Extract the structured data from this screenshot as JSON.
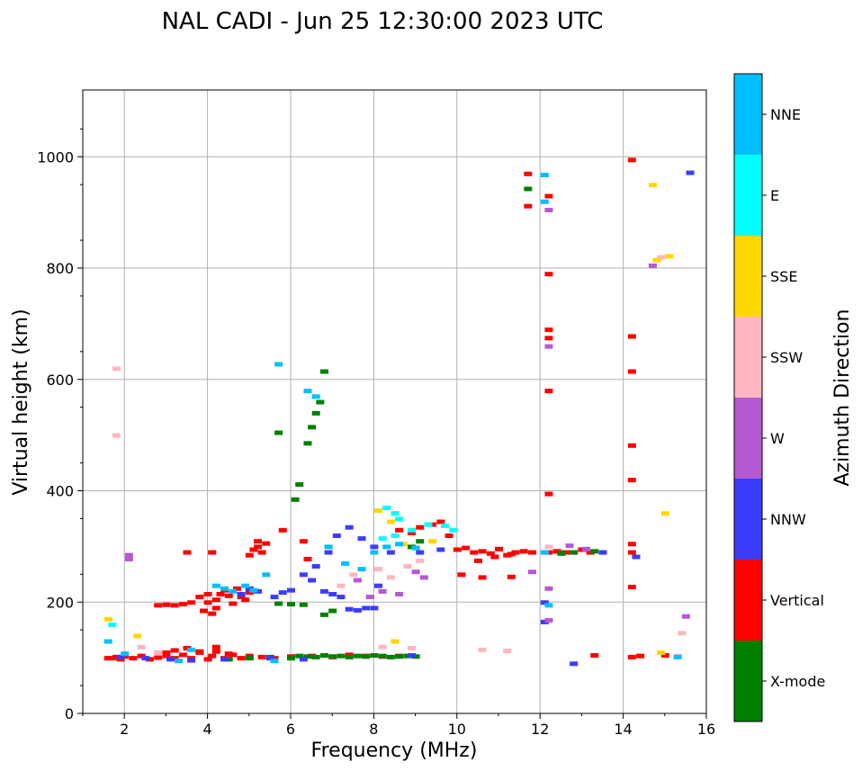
{
  "chart_data": {
    "type": "scatter",
    "title": "NAL CADI - Jun 25 12:30:00 2023 UTC",
    "xlabel": "Frequency (MHz)",
    "ylabel": "Virtual height (km)",
    "xlim": [
      1.0,
      16.0
    ],
    "ylim": [
      0,
      1120
    ],
    "xticks": [
      2,
      4,
      6,
      8,
      10,
      12,
      14,
      16
    ],
    "yticks": [
      0,
      200,
      400,
      600,
      800,
      1000
    ],
    "grid": true,
    "colorbar": {
      "label": "Azimuth Direction",
      "categories": [
        {
          "name": "X-mode",
          "color": "#008000"
        },
        {
          "name": "Vertical",
          "color": "#ff0000"
        },
        {
          "name": "NNW",
          "color": "#3c3cff"
        },
        {
          "name": "W",
          "color": "#b45ad2"
        },
        {
          "name": "SSW",
          "color": "#ffb6c1"
        },
        {
          "name": "SSE",
          "color": "#ffd700"
        },
        {
          "name": "E",
          "color": "#00ffff"
        },
        {
          "name": "NNE",
          "color": "#00bfff"
        }
      ]
    },
    "series": [
      {
        "name": "Vertical",
        "points": [
          [
            1.6,
            100
          ],
          [
            1.7,
            100
          ],
          [
            1.8,
            102
          ],
          [
            1.9,
            98
          ],
          [
            2.0,
            103
          ],
          [
            2.2,
            100
          ],
          [
            2.4,
            104
          ],
          [
            2.6,
            98
          ],
          [
            2.8,
            101
          ],
          [
            3.0,
            104
          ],
          [
            3.2,
            100
          ],
          [
            3.4,
            106
          ],
          [
            3.6,
            100
          ],
          [
            3.8,
            110
          ],
          [
            4.0,
            98
          ],
          [
            4.1,
            104
          ],
          [
            4.2,
            112
          ],
          [
            4.4,
            100
          ],
          [
            4.6,
            106
          ],
          [
            4.8,
            100
          ],
          [
            5.0,
            104
          ],
          [
            5.3,
            102
          ],
          [
            5.6,
            100
          ],
          [
            6.0,
            103
          ],
          [
            6.5,
            104
          ],
          [
            7.0,
            102
          ],
          [
            7.4,
            106
          ],
          [
            7.8,
            104
          ],
          [
            8.2,
            103
          ],
          [
            8.6,
            104
          ],
          [
            3.0,
            110
          ],
          [
            3.2,
            114
          ],
          [
            3.5,
            118
          ],
          [
            3.8,
            112
          ],
          [
            4.2,
            120
          ],
          [
            4.5,
            108
          ],
          [
            2.8,
            195
          ],
          [
            3.0,
            196
          ],
          [
            3.2,
            195
          ],
          [
            3.4,
            197
          ],
          [
            3.6,
            200
          ],
          [
            3.8,
            210
          ],
          [
            3.9,
            185
          ],
          [
            4.0,
            200
          ],
          [
            4.0,
            215
          ],
          [
            4.1,
            180
          ],
          [
            4.2,
            205
          ],
          [
            4.2,
            190
          ],
          [
            4.3,
            215
          ],
          [
            4.4,
            222
          ],
          [
            4.5,
            212
          ],
          [
            4.6,
            198
          ],
          [
            4.7,
            225
          ],
          [
            4.8,
            210
          ],
          [
            4.9,
            205
          ],
          [
            5.0,
            218
          ],
          [
            5.1,
            295
          ],
          [
            5.2,
            300
          ],
          [
            5.3,
            290
          ],
          [
            5.4,
            306
          ],
          [
            5.0,
            285
          ],
          [
            5.2,
            310
          ],
          [
            5.8,
            330
          ],
          [
            6.3,
            310
          ],
          [
            8.6,
            330
          ],
          [
            8.9,
            325
          ],
          [
            9.1,
            335
          ],
          [
            9.4,
            340
          ],
          [
            9.6,
            345
          ],
          [
            9.8,
            320
          ],
          [
            10.0,
            295
          ],
          [
            10.2,
            298
          ],
          [
            10.4,
            290
          ],
          [
            10.6,
            292
          ],
          [
            10.8,
            288
          ],
          [
            11.0,
            296
          ],
          [
            11.2,
            285
          ],
          [
            11.4,
            290
          ],
          [
            11.6,
            292
          ],
          [
            11.8,
            290
          ],
          [
            10.5,
            275
          ],
          [
            10.9,
            282
          ],
          [
            11.3,
            287
          ],
          [
            10.1,
            250
          ],
          [
            10.6,
            245
          ],
          [
            11.3,
            246
          ],
          [
            12.2,
            290
          ],
          [
            12.4,
            292
          ],
          [
            12.6,
            290
          ],
          [
            12.8,
            290
          ],
          [
            13.0,
            295
          ],
          [
            13.2,
            290
          ],
          [
            12.2,
            675
          ],
          [
            12.2,
            690
          ],
          [
            12.2,
            580
          ],
          [
            12.2,
            790
          ],
          [
            12.2,
            930
          ],
          [
            12.2,
            395
          ],
          [
            14.2,
            995
          ],
          [
            14.2,
            678
          ],
          [
            14.2,
            615
          ],
          [
            14.2,
            482
          ],
          [
            14.2,
            420
          ],
          [
            14.2,
            305
          ],
          [
            14.2,
            290
          ],
          [
            14.2,
            228
          ],
          [
            14.2,
            102
          ],
          [
            14.4,
            104
          ],
          [
            15.0,
            105
          ],
          [
            13.3,
            105
          ],
          [
            11.7,
            970
          ],
          [
            11.7,
            912
          ],
          [
            3.5,
            290
          ],
          [
            4.1,
            290
          ],
          [
            6.4,
            278
          ]
        ]
      },
      {
        "name": "X-mode",
        "points": [
          [
            4.5,
            98
          ],
          [
            5.0,
            100
          ],
          [
            5.5,
            102
          ],
          [
            6.0,
            100
          ],
          [
            6.2,
            104
          ],
          [
            6.4,
            103
          ],
          [
            6.6,
            102
          ],
          [
            6.8,
            105
          ],
          [
            7.0,
            103
          ],
          [
            7.2,
            104
          ],
          [
            7.4,
            102
          ],
          [
            7.6,
            104
          ],
          [
            7.8,
            103
          ],
          [
            8.0,
            105
          ],
          [
            8.2,
            104
          ],
          [
            8.4,
            102
          ],
          [
            8.6,
            103
          ],
          [
            8.8,
            104
          ],
          [
            9.0,
            103
          ],
          [
            5.7,
            198
          ],
          [
            6.0,
            197
          ],
          [
            6.3,
            196
          ],
          [
            6.8,
            178
          ],
          [
            7.0,
            185
          ],
          [
            6.1,
            385
          ],
          [
            6.2,
            412
          ],
          [
            6.4,
            486
          ],
          [
            6.5,
            515
          ],
          [
            6.6,
            540
          ],
          [
            6.7,
            560
          ],
          [
            6.8,
            615
          ],
          [
            5.7,
            505
          ],
          [
            12.5,
            288
          ],
          [
            12.8,
            290
          ],
          [
            13.3,
            292
          ],
          [
            11.7,
            943
          ],
          [
            8.9,
            300
          ],
          [
            9.1,
            310
          ]
        ]
      },
      {
        "name": "NNW",
        "points": [
          [
            1.9,
            102
          ],
          [
            2.5,
            100
          ],
          [
            3.1,
            98
          ],
          [
            3.6,
            96
          ],
          [
            4.4,
            98
          ],
          [
            5.5,
            100
          ],
          [
            6.3,
            98
          ],
          [
            8.9,
            105
          ],
          [
            4.8,
            215
          ],
          [
            5.0,
            225
          ],
          [
            5.2,
            220
          ],
          [
            5.6,
            210
          ],
          [
            5.8,
            218
          ],
          [
            6.0,
            222
          ],
          [
            6.3,
            250
          ],
          [
            6.5,
            240
          ],
          [
            6.8,
            220
          ],
          [
            7.0,
            215
          ],
          [
            7.2,
            210
          ],
          [
            7.4,
            188
          ],
          [
            7.6,
            186
          ],
          [
            7.8,
            190
          ],
          [
            8.0,
            190
          ],
          [
            8.1,
            230
          ],
          [
            6.6,
            265
          ],
          [
            6.9,
            290
          ],
          [
            7.1,
            320
          ],
          [
            7.4,
            335
          ],
          [
            7.7,
            315
          ],
          [
            8.0,
            300
          ],
          [
            8.4,
            290
          ],
          [
            9.1,
            290
          ],
          [
            9.6,
            295
          ],
          [
            12.1,
            200
          ],
          [
            12.1,
            165
          ],
          [
            12.8,
            90
          ],
          [
            13.5,
            290
          ],
          [
            15.6,
            972
          ],
          [
            14.3,
            282
          ]
        ]
      },
      {
        "name": "W",
        "points": [
          [
            2.1,
            285
          ],
          [
            2.1,
            278
          ],
          [
            7.6,
            240
          ],
          [
            7.9,
            210
          ],
          [
            8.2,
            220
          ],
          [
            8.6,
            215
          ],
          [
            9.0,
            255
          ],
          [
            9.2,
            245
          ],
          [
            11.8,
            255
          ],
          [
            12.7,
            302
          ],
          [
            13.1,
            296
          ],
          [
            12.2,
            168
          ],
          [
            14.7,
            805
          ],
          [
            15.5,
            175
          ],
          [
            12.2,
            660
          ],
          [
            12.2,
            905
          ],
          [
            12.2,
            225
          ]
        ]
      },
      {
        "name": "SSW",
        "points": [
          [
            1.8,
            620
          ],
          [
            1.8,
            500
          ],
          [
            2.4,
            120
          ],
          [
            2.8,
            110
          ],
          [
            7.2,
            230
          ],
          [
            7.5,
            250
          ],
          [
            8.1,
            260
          ],
          [
            8.4,
            245
          ],
          [
            8.8,
            265
          ],
          [
            9.1,
            275
          ],
          [
            8.2,
            120
          ],
          [
            8.9,
            118
          ],
          [
            10.6,
            115
          ],
          [
            11.2,
            113
          ],
          [
            12.2,
            300
          ],
          [
            15.4,
            145
          ],
          [
            14.9,
            820
          ],
          [
            15.3,
            104
          ]
        ]
      },
      {
        "name": "SSE",
        "points": [
          [
            1.6,
            170
          ],
          [
            2.3,
            140
          ],
          [
            8.1,
            365
          ],
          [
            8.4,
            345
          ],
          [
            8.7,
            305
          ],
          [
            9.0,
            298
          ],
          [
            9.4,
            310
          ],
          [
            8.5,
            130
          ],
          [
            14.7,
            950
          ],
          [
            15.1,
            822
          ],
          [
            14.8,
            815
          ],
          [
            15.0,
            360
          ],
          [
            14.9,
            110
          ]
        ]
      },
      {
        "name": "E",
        "points": [
          [
            1.7,
            160
          ],
          [
            8.3,
            370
          ],
          [
            8.5,
            360
          ],
          [
            8.6,
            350
          ],
          [
            8.9,
            330
          ],
          [
            9.3,
            340
          ],
          [
            9.7,
            338
          ],
          [
            9.9,
            330
          ],
          [
            8.2,
            315
          ],
          [
            8.5,
            320
          ]
        ]
      },
      {
        "name": "NNE",
        "points": [
          [
            1.6,
            130
          ],
          [
            2.0,
            108
          ],
          [
            3.6,
            115
          ],
          [
            4.2,
            230
          ],
          [
            4.4,
            225
          ],
          [
            4.6,
            220
          ],
          [
            4.9,
            230
          ],
          [
            5.1,
            222
          ],
          [
            5.4,
            250
          ],
          [
            5.7,
            628
          ],
          [
            6.4,
            580
          ],
          [
            6.6,
            570
          ],
          [
            6.9,
            300
          ],
          [
            7.3,
            270
          ],
          [
            7.7,
            260
          ],
          [
            8.0,
            290
          ],
          [
            8.3,
            300
          ],
          [
            8.6,
            305
          ],
          [
            9.0,
            298
          ],
          [
            12.1,
            290
          ],
          [
            12.1,
            968
          ],
          [
            12.1,
            920
          ],
          [
            12.2,
            195
          ],
          [
            15.3,
            102
          ],
          [
            5.6,
            95
          ],
          [
            3.3,
            95
          ]
        ]
      }
    ]
  }
}
